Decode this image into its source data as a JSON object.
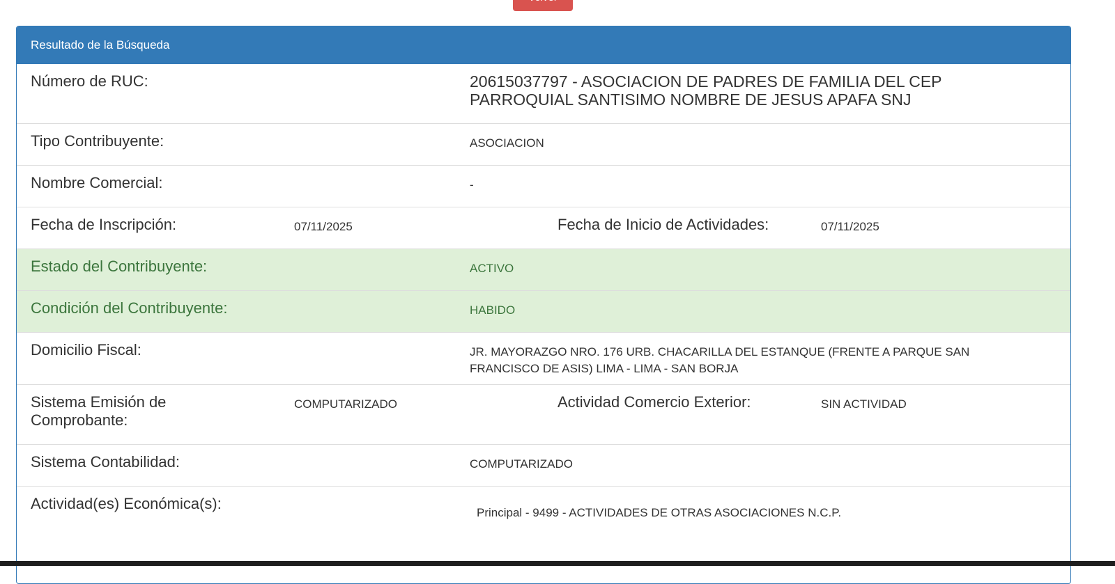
{
  "top_button": "Volver",
  "panel": {
    "title": "Resultado de la Búsqueda"
  },
  "rows": {
    "ruc": {
      "label": "Número de RUC:",
      "value": "20615037797 - ASOCIACION DE PADRES DE FAMILIA DEL CEP PARROQUIAL SANTISIMO NOMBRE DE JESUS APAFA SNJ"
    },
    "tipo": {
      "label": "Tipo Contribuyente:",
      "value": "ASOCIACION"
    },
    "nombre": {
      "label": "Nombre Comercial:",
      "value": "-"
    },
    "fecha": {
      "label": "Fecha de Inscripción:",
      "value": "07/11/2025",
      "label2": "Fecha de Inicio de Actividades:",
      "value2": "07/11/2025"
    },
    "estado": {
      "label": "Estado del Contribuyente:",
      "value": "ACTIVO"
    },
    "condicion": {
      "label": "Condición del Contribuyente:",
      "value": "HABIDO"
    },
    "domicilio": {
      "label": "Domicilio Fiscal:",
      "value": "JR. MAYORAZGO NRO. 176 URB. CHACARILLA DEL ESTANQUE (FRENTE A PARQUE SAN FRANCISCO DE ASIS) LIMA - LIMA - SAN BORJA"
    },
    "emision": {
      "label": "Sistema Emisión de Comprobante:",
      "value": "COMPUTARIZADO",
      "label2": "Actividad Comercio Exterior:",
      "value2": "SIN ACTIVIDAD"
    },
    "contabilidad": {
      "label": "Sistema Contabilidad:",
      "value": "COMPUTARIZADO"
    },
    "actividad": {
      "label": "Actividad(es) Económica(s):",
      "value": "Principal - 9499 - ACTIVIDADES DE OTRAS ASOCIACIONES N.C.P."
    }
  },
  "colors": {
    "header": "#337ab7",
    "success_bg": "#dff0d8",
    "success_text": "#3c763d",
    "button": "#d9534f"
  }
}
